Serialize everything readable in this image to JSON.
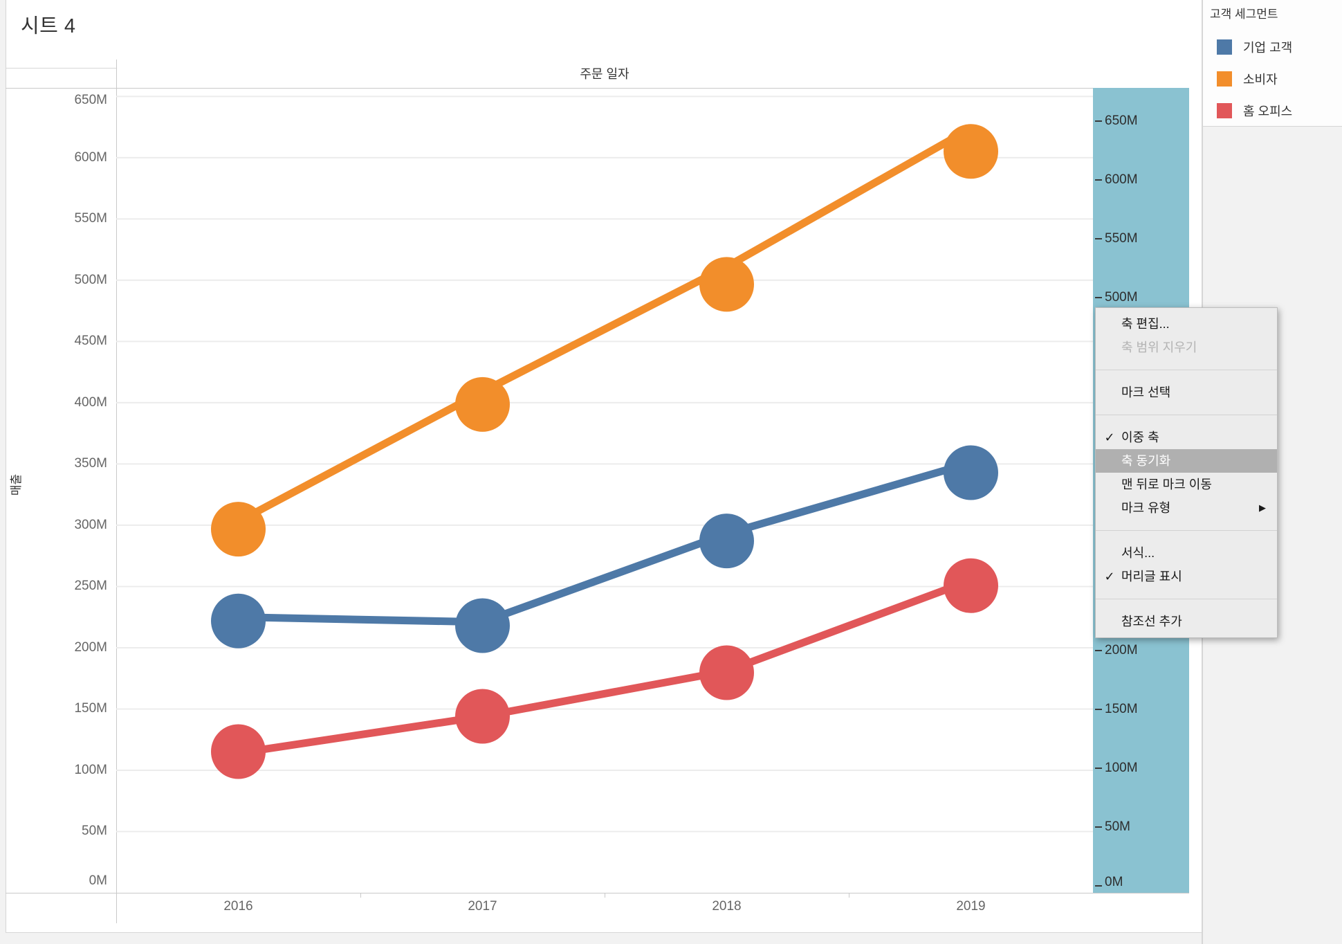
{
  "window": {
    "title": "시트 4"
  },
  "chart": {
    "column_header": "주문 일자",
    "y_axis_title": "매출",
    "x_tick_labels": [
      "2016",
      "2017",
      "2018",
      "2019"
    ],
    "y_tick_labels": [
      "0M",
      "50M",
      "100M",
      "150M",
      "200M",
      "250M",
      "300M",
      "350M",
      "400M",
      "450M",
      "500M",
      "550M",
      "600M",
      "650M"
    ]
  },
  "chart_data": {
    "type": "line",
    "title": "시트 4",
    "xlabel": "주문 일자",
    "ylabel": "매출",
    "x": [
      2016,
      2017,
      2018,
      2019
    ],
    "unit_suffix": "M",
    "grid": "horizontal",
    "dual_axis": {
      "synchronized": false,
      "line_marks_axis": "left",
      "circle_marks_axis": "right",
      "left_axis": {
        "range_m": [
          0,
          657
        ],
        "ticks_m": [
          0,
          50,
          100,
          150,
          200,
          250,
          300,
          350,
          400,
          450,
          500,
          550,
          600,
          650
        ]
      },
      "right_axis": {
        "range_m": [
          -6,
          678
        ],
        "ticks_m": [
          0,
          50,
          100,
          150,
          200,
          250,
          300,
          350,
          400,
          450,
          500,
          550,
          600,
          650
        ],
        "highlighted": true
      }
    },
    "series": [
      {
        "name": "기업 고객",
        "color": "#4e79a7",
        "values_m": [
          225,
          221,
          293,
          351
        ]
      },
      {
        "name": "소비자",
        "color": "#f28e2b",
        "values_m": [
          303,
          409,
          511,
          624
        ]
      },
      {
        "name": "홈 오피스",
        "color": "#e15759",
        "values_m": [
          114,
          144,
          181,
          255
        ]
      }
    ],
    "legend_title": "고객 세그먼트",
    "legend_position": "top-right"
  },
  "legend": {
    "title": "고객 세그먼트",
    "items": [
      {
        "label": "기업 고객",
        "color": "#4e79a7"
      },
      {
        "label": "소비자",
        "color": "#f28e2b"
      },
      {
        "label": "홈 오피스",
        "color": "#e15759"
      }
    ]
  },
  "context_menu": {
    "items": [
      {
        "label": "축 편집..."
      },
      {
        "label": "축 범위 지우기",
        "disabled": true
      },
      {
        "separator": true
      },
      {
        "label": "마크 선택"
      },
      {
        "separator": true
      },
      {
        "label": "이중 축",
        "checked": true
      },
      {
        "label": "축 동기화",
        "highlighted": true
      },
      {
        "label": "맨 뒤로 마크 이동"
      },
      {
        "label": "마크 유형",
        "submenu": true
      },
      {
        "separator": true
      },
      {
        "label": "서식..."
      },
      {
        "label": "머리글 표시",
        "checked": true
      },
      {
        "separator": true
      },
      {
        "label": "참조선 추가"
      }
    ]
  },
  "colors": {
    "axis_highlight": "#8ac2d1",
    "menu_bg": "#ececec",
    "menu_highlight_bg": "#b0b0b0",
    "menu_highlight_text": "#ffffff",
    "grid_line": "#ececec",
    "plot_border": "#c9c9c9",
    "tick_text": "#666666"
  }
}
